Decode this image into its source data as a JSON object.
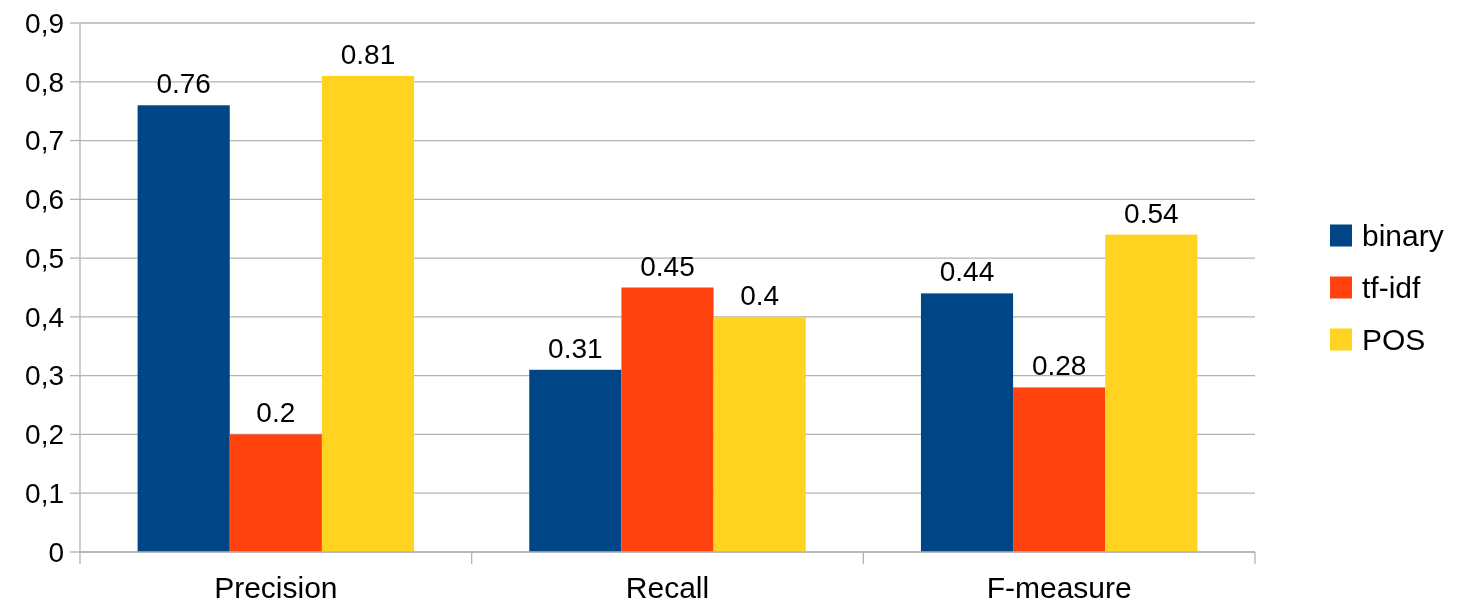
{
  "chart_data": {
    "type": "bar",
    "categories": [
      "Precision",
      "Recall",
      "F-measure"
    ],
    "series": [
      {
        "name": "binary",
        "color": "#004586",
        "values": [
          0.76,
          0.31,
          0.44
        ]
      },
      {
        "name": "tf-idf",
        "color": "#ff420e",
        "values": [
          0.2,
          0.45,
          0.28
        ]
      },
      {
        "name": "POS",
        "color": "#ffd320",
        "values": [
          0.81,
          0.4,
          0.54
        ]
      }
    ],
    "ylim": [
      0,
      0.9
    ],
    "yticks": [
      {
        "value": 0,
        "label": "0"
      },
      {
        "value": 0.1,
        "label": "0,1"
      },
      {
        "value": 0.2,
        "label": "0,2"
      },
      {
        "value": 0.3,
        "label": "0,3"
      },
      {
        "value": 0.4,
        "label": "0,4"
      },
      {
        "value": 0.5,
        "label": "0,5"
      },
      {
        "value": 0.6,
        "label": "0,6"
      },
      {
        "value": 0.7,
        "label": "0,7"
      },
      {
        "value": 0.8,
        "label": "0,8"
      },
      {
        "value": 0.9,
        "label": "0,9"
      }
    ],
    "grid": "y",
    "legend": "right",
    "data_labels": true
  }
}
